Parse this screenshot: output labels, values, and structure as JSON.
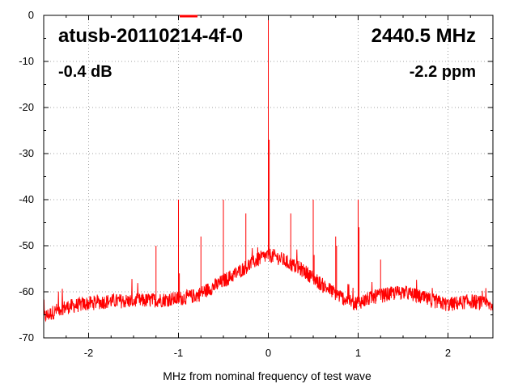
{
  "chart_data": {
    "type": "line",
    "xlabel": "MHz from nominal frequency of test wave",
    "ylabel": "",
    "xlim": [
      -2.5,
      2.5
    ],
    "ylim": [
      -70,
      0
    ],
    "grid": true,
    "x_ticks": [
      -2,
      -1,
      0,
      1,
      2
    ],
    "y_ticks": [
      0,
      -10,
      -20,
      -30,
      -40,
      -50,
      -60,
      -70
    ],
    "x_tick_labels": [
      "-2",
      "-1",
      "0",
      "1",
      "2"
    ],
    "y_tick_labels": [
      "0",
      "-10",
      "-20",
      "-30",
      "-40",
      "-50",
      "-60",
      "-70"
    ],
    "annotations": {
      "device": "atusb-20110214-4f-0",
      "frequency": "2440.5 MHz",
      "level": "-0.4 dB",
      "offset": "-2.2 ppm"
    },
    "series_color": "#ff0000",
    "legend": "top-center",
    "noise_floor": [
      [
        -2.5,
        -65.5
      ],
      [
        -2.3,
        -63.5
      ],
      [
        -2.0,
        -62.5
      ],
      [
        -1.75,
        -62
      ],
      [
        -1.5,
        -62
      ],
      [
        -1.25,
        -61.8
      ],
      [
        -1.0,
        -61.5
      ],
      [
        -0.8,
        -60.8
      ],
      [
        -0.6,
        -58.8
      ],
      [
        -0.4,
        -56.5
      ],
      [
        -0.2,
        -54
      ],
      [
        -0.1,
        -52.8
      ],
      [
        0.0,
        -52
      ],
      [
        0.1,
        -52.5
      ],
      [
        0.2,
        -53.5
      ],
      [
        0.4,
        -55.5
      ],
      [
        0.6,
        -58.5
      ],
      [
        0.8,
        -61
      ],
      [
        0.95,
        -62.5
      ],
      [
        1.05,
        -62
      ],
      [
        1.2,
        -61
      ],
      [
        1.5,
        -60
      ],
      [
        1.75,
        -61.5
      ],
      [
        2.0,
        -62.8
      ],
      [
        2.25,
        -62
      ],
      [
        2.5,
        -63
      ]
    ],
    "spurs": [
      {
        "x": -1.25,
        "y": -50
      },
      {
        "x": -1.0,
        "y": -40
      },
      {
        "x": -0.99,
        "y": -56
      },
      {
        "x": -0.75,
        "y": -48
      },
      {
        "x": -0.5,
        "y": -40
      },
      {
        "x": -0.25,
        "y": -43
      },
      {
        "x": 0.0,
        "y": -0.4
      },
      {
        "x": 0.01,
        "y": -27
      },
      {
        "x": 0.25,
        "y": -43
      },
      {
        "x": 0.5,
        "y": -40
      },
      {
        "x": 0.51,
        "y": -52
      },
      {
        "x": 0.75,
        "y": -48
      },
      {
        "x": 0.76,
        "y": -50
      },
      {
        "x": 1.0,
        "y": -40
      },
      {
        "x": 1.01,
        "y": -46
      },
      {
        "x": 1.25,
        "y": -53
      }
    ]
  }
}
